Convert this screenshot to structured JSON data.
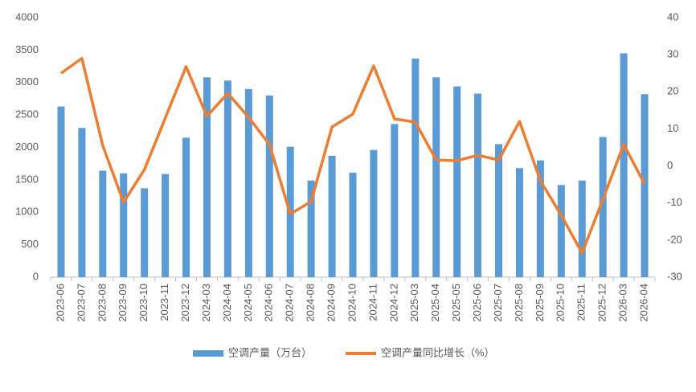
{
  "chart_data": {
    "type": "bar-line",
    "categories": [
      "2023-06",
      "2023-07",
      "2023-08",
      "2023-09",
      "2023-10",
      "2023-11",
      "2023-12",
      "2024-03",
      "2024-04",
      "2024-05",
      "2024-06",
      "2024-07",
      "2024-08",
      "2024-09",
      "2024-10",
      "2024-11",
      "2024-12",
      "2025-03",
      "2025-04",
      "2025-05",
      "2025-06",
      "2025-07",
      "2025-08",
      "2025-09",
      "2025-10",
      "2025-11",
      "2025-12",
      "2026-03",
      "2026-04"
    ],
    "series": [
      {
        "name": "空调产量（万台）",
        "type": "bar",
        "color": "#5b9bd5",
        "values": [
          2630,
          2300,
          1640,
          1600,
          1370,
          1590,
          2150,
          3080,
          3030,
          2900,
          2800,
          2010,
          1490,
          1870,
          1610,
          1960,
          2360,
          3370,
          3080,
          2940,
          2830,
          2050,
          1680,
          1800,
          1420,
          1490,
          2160,
          3450,
          2820
        ]
      },
      {
        "name": "空调产量同比增长（%）",
        "type": "line",
        "axis": "y2",
        "color": "#ed7d31",
        "values": [
          25,
          29,
          5.5,
          -9.8,
          -1,
          12.9,
          26.8,
          13.4,
          19.6,
          13.1,
          5.8,
          -13,
          -9.6,
          10.5,
          14,
          27,
          12.7,
          11.8,
          1.6,
          1.4,
          2.9,
          1.6,
          12,
          -4,
          -13.3,
          -23.5,
          -9,
          5.8,
          -4.9
        ]
      }
    ],
    "ylim": [
      0,
      4000
    ],
    "yticks": [
      0,
      500,
      1000,
      1500,
      2000,
      2500,
      3000,
      3500,
      4000
    ],
    "y2lim": [
      -30,
      40
    ],
    "y2ticks": [
      -30,
      -20,
      -10,
      0,
      10,
      20,
      30,
      40
    ],
    "legend": "bottom"
  }
}
